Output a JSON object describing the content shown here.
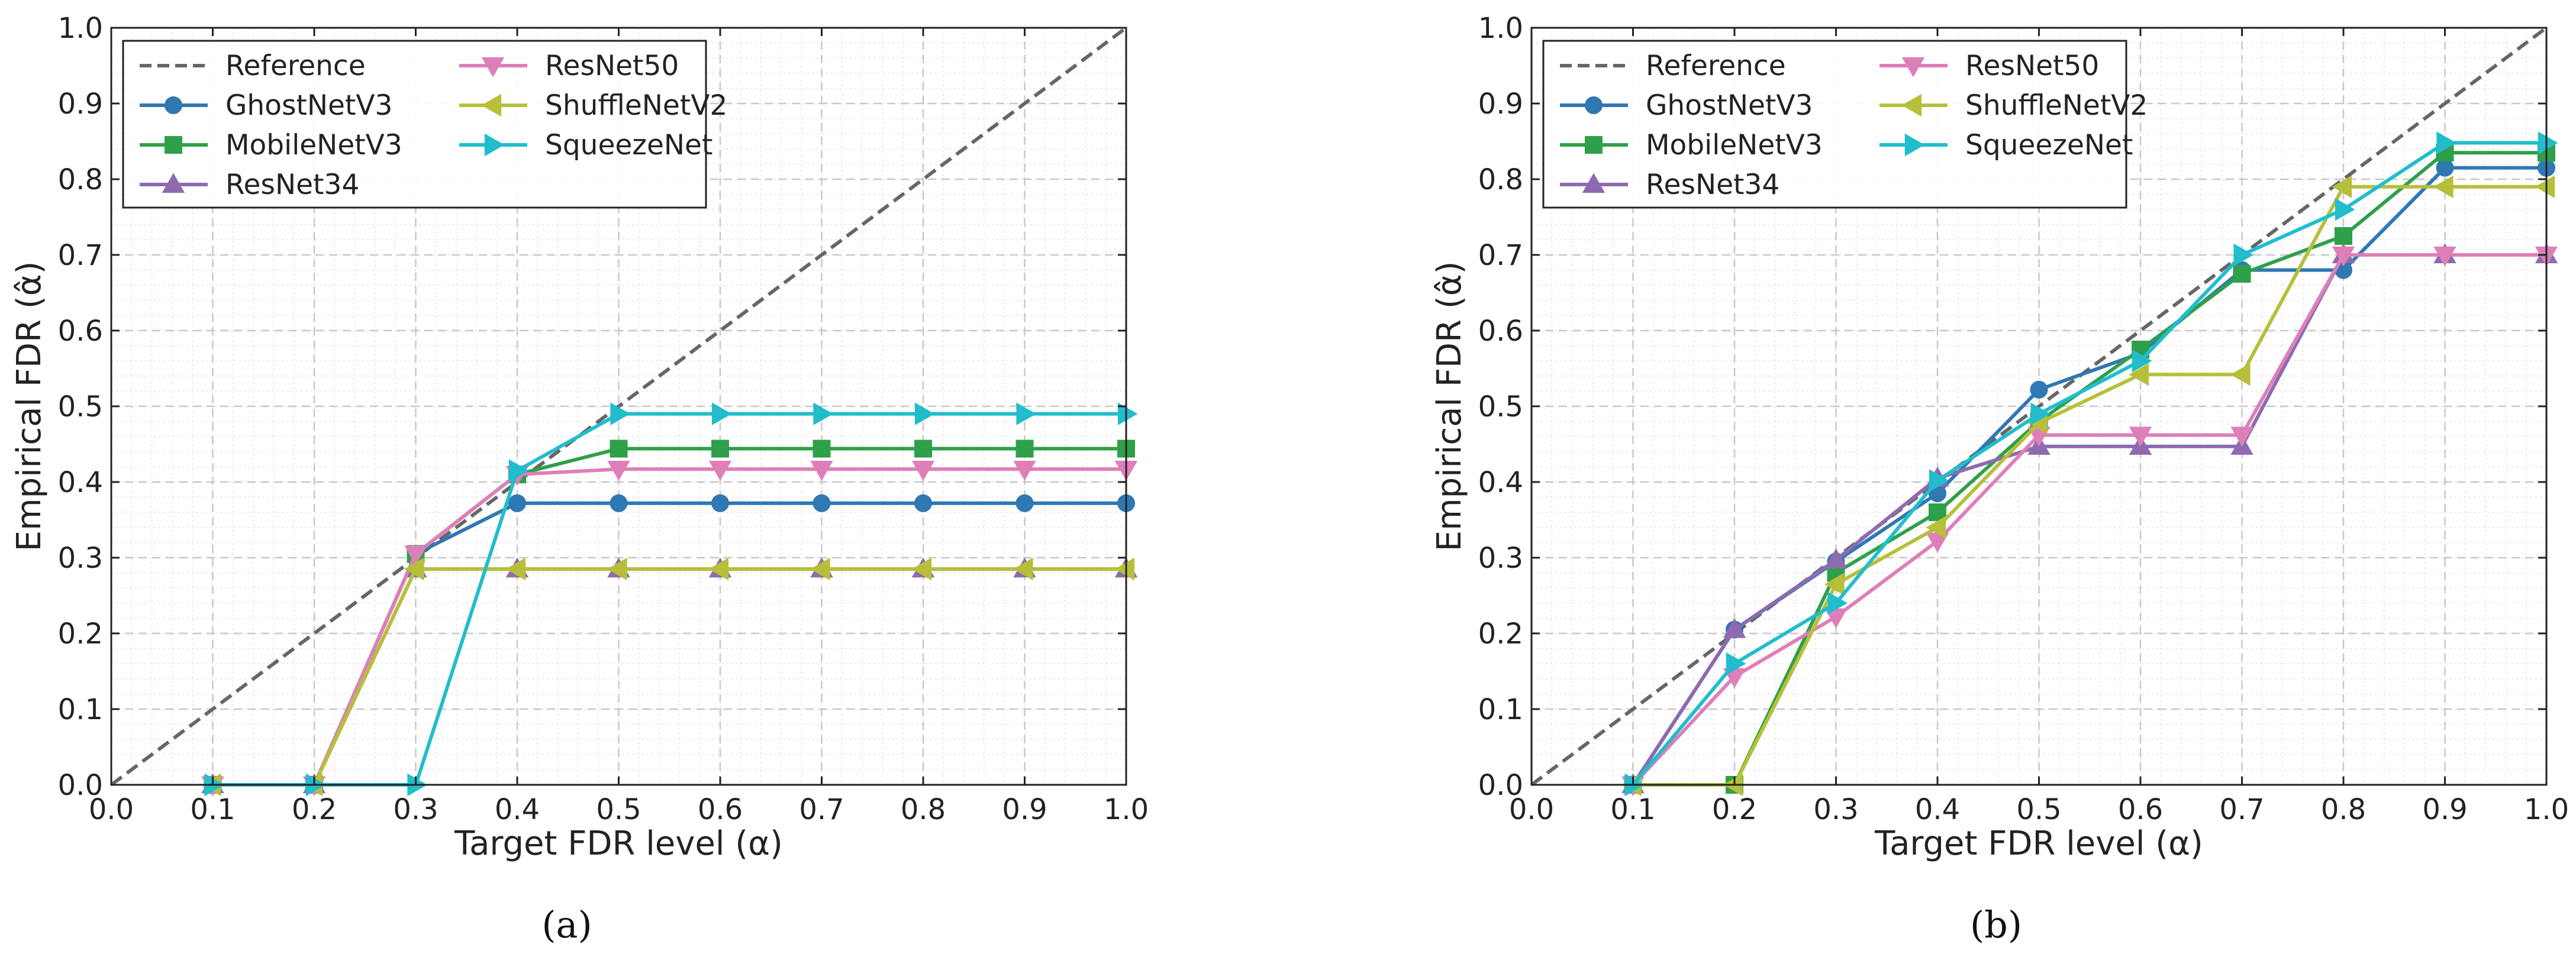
{
  "chart_data": [
    {
      "type": "line",
      "panel": "a",
      "caption": "(a)",
      "xlabel": "Target FDR level (α)",
      "ylabel": "Empirical FDR (α̂)",
      "xlim": [
        0.0,
        1.0
      ],
      "ylim": [
        0.0,
        1.0
      ],
      "xticks": [
        "0.0",
        "0.1",
        "0.2",
        "0.3",
        "0.4",
        "0.5",
        "0.6",
        "0.7",
        "0.8",
        "0.9",
        "1.0"
      ],
      "yticks": [
        "0.0",
        "0.1",
        "0.2",
        "0.3",
        "0.4",
        "0.5",
        "0.6",
        "0.7",
        "0.8",
        "0.9",
        "1.0"
      ],
      "grid": true,
      "legend_position": "top-left",
      "reference": {
        "name": "Reference",
        "x": [
          0.0,
          1.0
        ],
        "y": [
          0.0,
          1.0
        ],
        "color": "#666666"
      },
      "x": [
        0.1,
        0.2,
        0.3,
        0.4,
        0.5,
        0.6,
        0.7,
        0.8,
        0.9,
        1.0
      ],
      "series": [
        {
          "name": "GhostNetV3",
          "color": "#2f78b3",
          "marker": "circle",
          "values": [
            0.0,
            0.0,
            0.305,
            0.372,
            0.372,
            0.372,
            0.372,
            0.372,
            0.372,
            0.372
          ]
        },
        {
          "name": "MobileNetV3",
          "color": "#2fa04a",
          "marker": "square",
          "values": [
            0.0,
            0.0,
            0.305,
            0.41,
            0.444,
            0.444,
            0.444,
            0.444,
            0.444,
            0.444
          ]
        },
        {
          "name": "ResNet34",
          "color": "#8e6bb0",
          "marker": "triangle-up",
          "values": [
            0.0,
            0.0,
            0.285,
            0.285,
            0.285,
            0.285,
            0.285,
            0.285,
            0.285,
            0.285
          ]
        },
        {
          "name": "ResNet50",
          "color": "#de7fb9",
          "marker": "triangle-down",
          "values": [
            0.0,
            0.0,
            0.305,
            0.41,
            0.417,
            0.417,
            0.417,
            0.417,
            0.417,
            0.417
          ]
        },
        {
          "name": "ShuffleNetV2",
          "color": "#b7bf3a",
          "marker": "triangle-left",
          "values": [
            0.0,
            0.0,
            0.285,
            0.285,
            0.285,
            0.285,
            0.285,
            0.285,
            0.285,
            0.285
          ]
        },
        {
          "name": "SqueezeNet",
          "color": "#21bdcd",
          "marker": "triangle-right",
          "values": [
            0.0,
            0.0,
            0.0,
            0.415,
            0.49,
            0.49,
            0.49,
            0.49,
            0.49,
            0.49
          ]
        }
      ]
    },
    {
      "type": "line",
      "panel": "b",
      "caption": "(b)",
      "xlabel": "Target FDR level (α)",
      "ylabel": "Empirical FDR (α̂)",
      "xlim": [
        0.0,
        1.0
      ],
      "ylim": [
        0.0,
        1.0
      ],
      "xticks": [
        "0.0",
        "0.1",
        "0.2",
        "0.3",
        "0.4",
        "0.5",
        "0.6",
        "0.7",
        "0.8",
        "0.9",
        "1.0"
      ],
      "yticks": [
        "0.0",
        "0.1",
        "0.2",
        "0.3",
        "0.4",
        "0.5",
        "0.6",
        "0.7",
        "0.8",
        "0.9",
        "1.0"
      ],
      "grid": true,
      "legend_position": "top-left",
      "reference": {
        "name": "Reference",
        "x": [
          0.0,
          1.0
        ],
        "y": [
          0.0,
          1.0
        ],
        "color": "#666666"
      },
      "x": [
        0.1,
        0.2,
        0.3,
        0.4,
        0.5,
        0.6,
        0.7,
        0.8,
        0.9,
        1.0
      ],
      "series": [
        {
          "name": "GhostNetV3",
          "color": "#2f78b3",
          "marker": "circle",
          "values": [
            0.0,
            0.205,
            0.295,
            0.385,
            0.522,
            0.57,
            0.68,
            0.68,
            0.815,
            0.815
          ]
        },
        {
          "name": "MobileNetV3",
          "color": "#2fa04a",
          "marker": "square",
          "values": [
            0.0,
            0.0,
            0.28,
            0.36,
            0.48,
            0.575,
            0.675,
            0.725,
            0.835,
            0.835
          ]
        },
        {
          "name": "ResNet34",
          "color": "#8e6bb0",
          "marker": "triangle-up",
          "values": [
            0.0,
            0.205,
            0.297,
            0.405,
            0.447,
            0.447,
            0.447,
            0.7,
            0.7,
            0.7
          ]
        },
        {
          "name": "ResNet50",
          "color": "#de7fb9",
          "marker": "triangle-down",
          "values": [
            0.0,
            0.143,
            0.222,
            0.322,
            0.462,
            0.462,
            0.462,
            0.7,
            0.7,
            0.7
          ]
        },
        {
          "name": "ShuffleNetV2",
          "color": "#b7bf3a",
          "marker": "triangle-left",
          "values": [
            0.0,
            0.0,
            0.265,
            0.34,
            0.478,
            0.542,
            0.542,
            0.79,
            0.79,
            0.79
          ]
        },
        {
          "name": "SqueezeNet",
          "color": "#21bdcd",
          "marker": "triangle-right",
          "values": [
            0.0,
            0.16,
            0.24,
            0.402,
            0.49,
            0.56,
            0.7,
            0.76,
            0.848,
            0.848
          ]
        }
      ]
    }
  ]
}
